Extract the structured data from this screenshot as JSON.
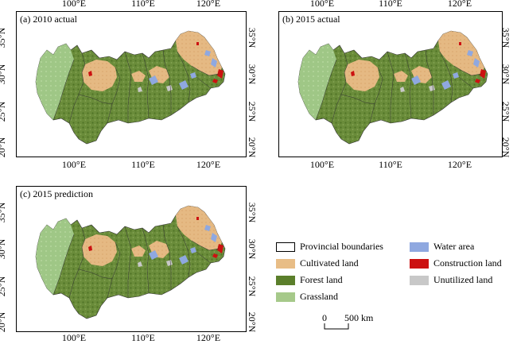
{
  "panels": [
    {
      "label": "(a) 2010 actual"
    },
    {
      "label": "(b) 2015 actual"
    },
    {
      "label": "(c) 2015 prediction"
    }
  ],
  "x_ticks": [
    "100°E",
    "110°E",
    "120°E"
  ],
  "y_ticks": [
    "35°N",
    "30°N",
    "25°N",
    "20°N"
  ],
  "legend": {
    "items": [
      {
        "label": "Provincial boundaries",
        "color": "#ffffff"
      },
      {
        "label": "Water area",
        "color": "#8fa8e0"
      },
      {
        "label": "Cultivated land",
        "color": "#e8bd86"
      },
      {
        "label": "Construction land",
        "color": "#cc1111"
      },
      {
        "label": "Forest land",
        "color": "#5b7f2b"
      },
      {
        "label": "Unutilized land",
        "color": "#c8c8c8"
      },
      {
        "label": "Grassland",
        "color": "#a6c98a"
      }
    ]
  },
  "scale_bar": {
    "zero": "0",
    "value": "500 km"
  }
}
